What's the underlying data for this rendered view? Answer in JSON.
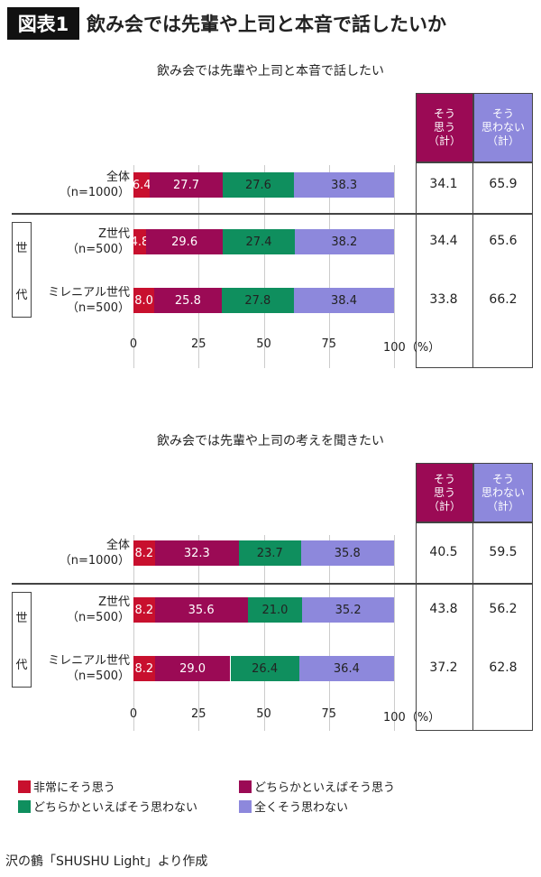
{
  "header": {
    "badge": "図表1",
    "title": "飲み会では先輩や上司と本音で話したいか"
  },
  "colors": {
    "strongly_agree": "#c8102e",
    "somewhat_agree": "#9b0a55",
    "somewhat_disagree": "#0f8f5e",
    "strongly_disagree": "#8d88dc"
  },
  "chart_data": [
    {
      "type": "bar",
      "orientation": "horizontal",
      "stacked": true,
      "title": "飲み会では先輩や上司と本音で話したい",
      "categories": [
        "全体（n=1000）",
        "Z世代（n=500）",
        "ミレニアル世代（n=500）"
      ],
      "category_lines": [
        [
          "全体",
          "（n=1000）"
        ],
        [
          "Z世代",
          "（n=500）"
        ],
        [
          "ミレニアル世代",
          "（n=500）"
        ]
      ],
      "group_label": [
        "世",
        "代"
      ],
      "series": [
        {
          "name": "非常にそう思う",
          "values": [
            6.4,
            4.8,
            8.0
          ]
        },
        {
          "name": "どちらかといえばそう思う",
          "values": [
            27.7,
            29.6,
            25.8
          ]
        },
        {
          "name": "どちらかといえばそう思わない",
          "values": [
            27.6,
            27.4,
            27.8
          ]
        },
        {
          "name": "全くそう思わない",
          "values": [
            38.3,
            38.2,
            38.4
          ]
        }
      ],
      "xlim": [
        0,
        100
      ],
      "xticks": [
        "0",
        "25",
        "50",
        "75",
        "100（%）"
      ],
      "grid": true,
      "table": {
        "headers": [
          [
            "そう",
            "思う",
            "（計）"
          ],
          [
            "そう",
            "思わない",
            "（計）"
          ]
        ],
        "rows": [
          [
            "34.1",
            "65.9"
          ],
          [
            "34.4",
            "65.6"
          ],
          [
            "33.8",
            "66.2"
          ]
        ]
      }
    },
    {
      "type": "bar",
      "orientation": "horizontal",
      "stacked": true,
      "title": "飲み会では先輩や上司の考えを聞きたい",
      "categories": [
        "全体（n=1000）",
        "Z世代（n=500）",
        "ミレニアル世代（n=500）"
      ],
      "category_lines": [
        [
          "全体",
          "（n=1000）"
        ],
        [
          "Z世代",
          "（n=500）"
        ],
        [
          "ミレニアル世代",
          "（n=500）"
        ]
      ],
      "group_label": [
        "世",
        "代"
      ],
      "series": [
        {
          "name": "非常にそう思う",
          "values": [
            8.2,
            8.2,
            8.2
          ]
        },
        {
          "name": "どちらかといえばそう思う",
          "values": [
            32.3,
            35.6,
            29.0
          ]
        },
        {
          "name": "どちらかといえばそう思わない",
          "values": [
            23.7,
            21.0,
            26.4
          ]
        },
        {
          "name": "全くそう思わない",
          "values": [
            35.8,
            35.2,
            36.4
          ]
        }
      ],
      "xlim": [
        0,
        100
      ],
      "xticks": [
        "0",
        "25",
        "50",
        "75",
        "100（%）"
      ],
      "grid": true,
      "table": {
        "headers": [
          [
            "そう",
            "思う",
            "（計）"
          ],
          [
            "そう",
            "思わない",
            "（計）"
          ]
        ],
        "rows": [
          [
            "40.5",
            "59.5"
          ],
          [
            "43.8",
            "56.2"
          ],
          [
            "37.2",
            "62.8"
          ]
        ]
      }
    }
  ],
  "legend": [
    "非常にそう思う",
    "どちらかといえばそう思う",
    "どちらかといえばそう思わない",
    "全くそう思わない"
  ],
  "source": "沢の鶴「SHUSHU Light」より作成"
}
